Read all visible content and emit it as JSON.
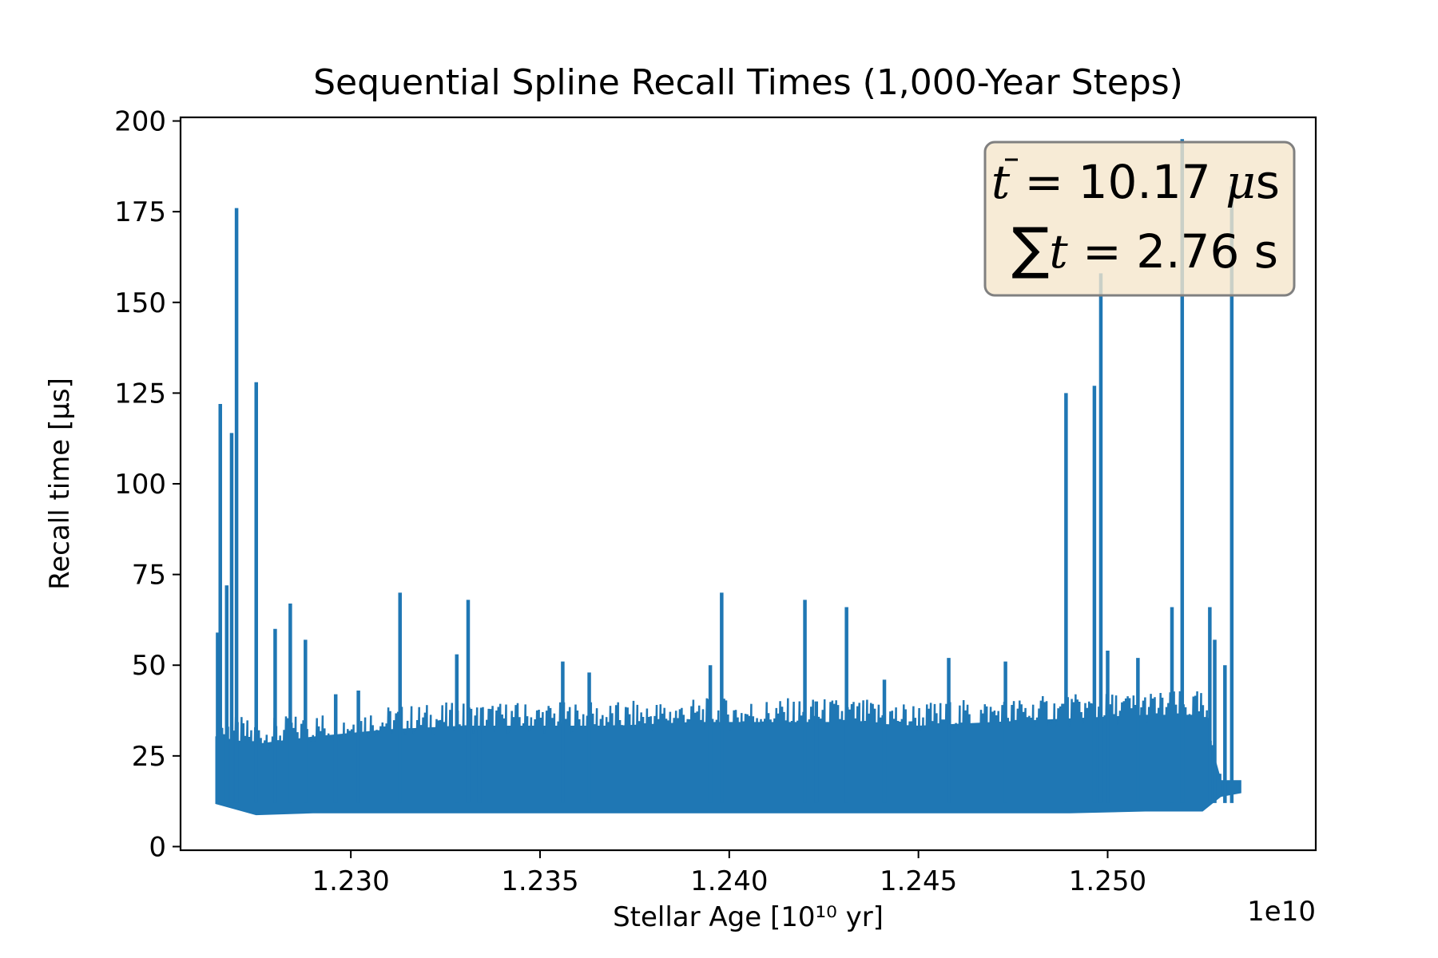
{
  "chart_data": {
    "type": "line",
    "title": "Sequential Spline Recall Times (1,000-Year Steps)",
    "xlabel": "Stellar Age [10¹⁰ yr]",
    "ylabel": "Recall time [μs]",
    "x_offset_text": "1e10",
    "xlim": [
      1.2255,
      1.2555
    ],
    "ylim": [
      -1,
      201
    ],
    "x_ticks": [
      1.23,
      1.235,
      1.24,
      1.245,
      1.25
    ],
    "x_tick_labels": [
      "1.230",
      "1.235",
      "1.240",
      "1.245",
      "1.250"
    ],
    "y_ticks": [
      0,
      25,
      50,
      75,
      100,
      125,
      150,
      175,
      200
    ],
    "y_tick_labels": [
      "0",
      "25",
      "50",
      "75",
      "100",
      "125",
      "150",
      "175",
      "200"
    ],
    "grid": false,
    "series": [
      {
        "color": "#1f77b4",
        "band_envelope": {
          "x": [
            1.22645,
            1.2275,
            1.229,
            1.231,
            1.233,
            1.235,
            1.237,
            1.239,
            1.241,
            1.243,
            1.245,
            1.247,
            1.249,
            1.251,
            1.2525,
            1.25298,
            1.2535
          ],
          "low": [
            12,
            9,
            9.5,
            9.5,
            9.5,
            9.5,
            9.5,
            9.5,
            9.5,
            9.5,
            9.5,
            9.5,
            9.5,
            10,
            10,
            14,
            15
          ],
          "high": [
            30,
            28,
            30,
            32,
            33,
            33,
            33,
            34,
            34,
            34,
            33,
            34,
            35,
            36,
            36,
            18,
            18
          ]
        },
        "spikes": {
          "x": [
            1.22648,
            1.22655,
            1.22672,
            1.22685,
            1.22698,
            1.228,
            1.2275,
            1.2284,
            1.2288,
            1.2296,
            1.2302,
            1.2313,
            1.2328,
            1.2331,
            1.2334,
            1.2356,
            1.2363,
            1.2395,
            1.2398,
            1.242,
            1.2423,
            1.2431,
            1.2441,
            1.2458,
            1.2473,
            1.2489,
            1.24965,
            1.24982,
            1.25,
            1.2508,
            1.2517,
            1.25197,
            1.2527,
            1.25283,
            1.25328,
            1.2531
          ],
          "y": [
            59,
            122,
            72,
            114,
            176,
            60,
            128,
            67,
            57,
            42,
            43,
            70,
            53,
            68,
            33,
            51,
            48,
            50,
            70,
            68,
            40,
            66,
            46,
            52,
            51,
            125,
            127,
            158,
            54,
            52,
            66,
            195,
            66,
            57,
            182,
            50
          ]
        }
      }
    ],
    "annotation": {
      "mean_symbol": "t",
      "mean_eq": " = 10.17 ",
      "mean_unit_mu": "μ",
      "mean_unit_s": "s",
      "sum_symbol": "∑",
      "sum_var": "t",
      "sum_eq": " = 2.76 s",
      "box_color": "#f5e6cc",
      "edge_color": "#808080",
      "placement": "top-right"
    }
  }
}
